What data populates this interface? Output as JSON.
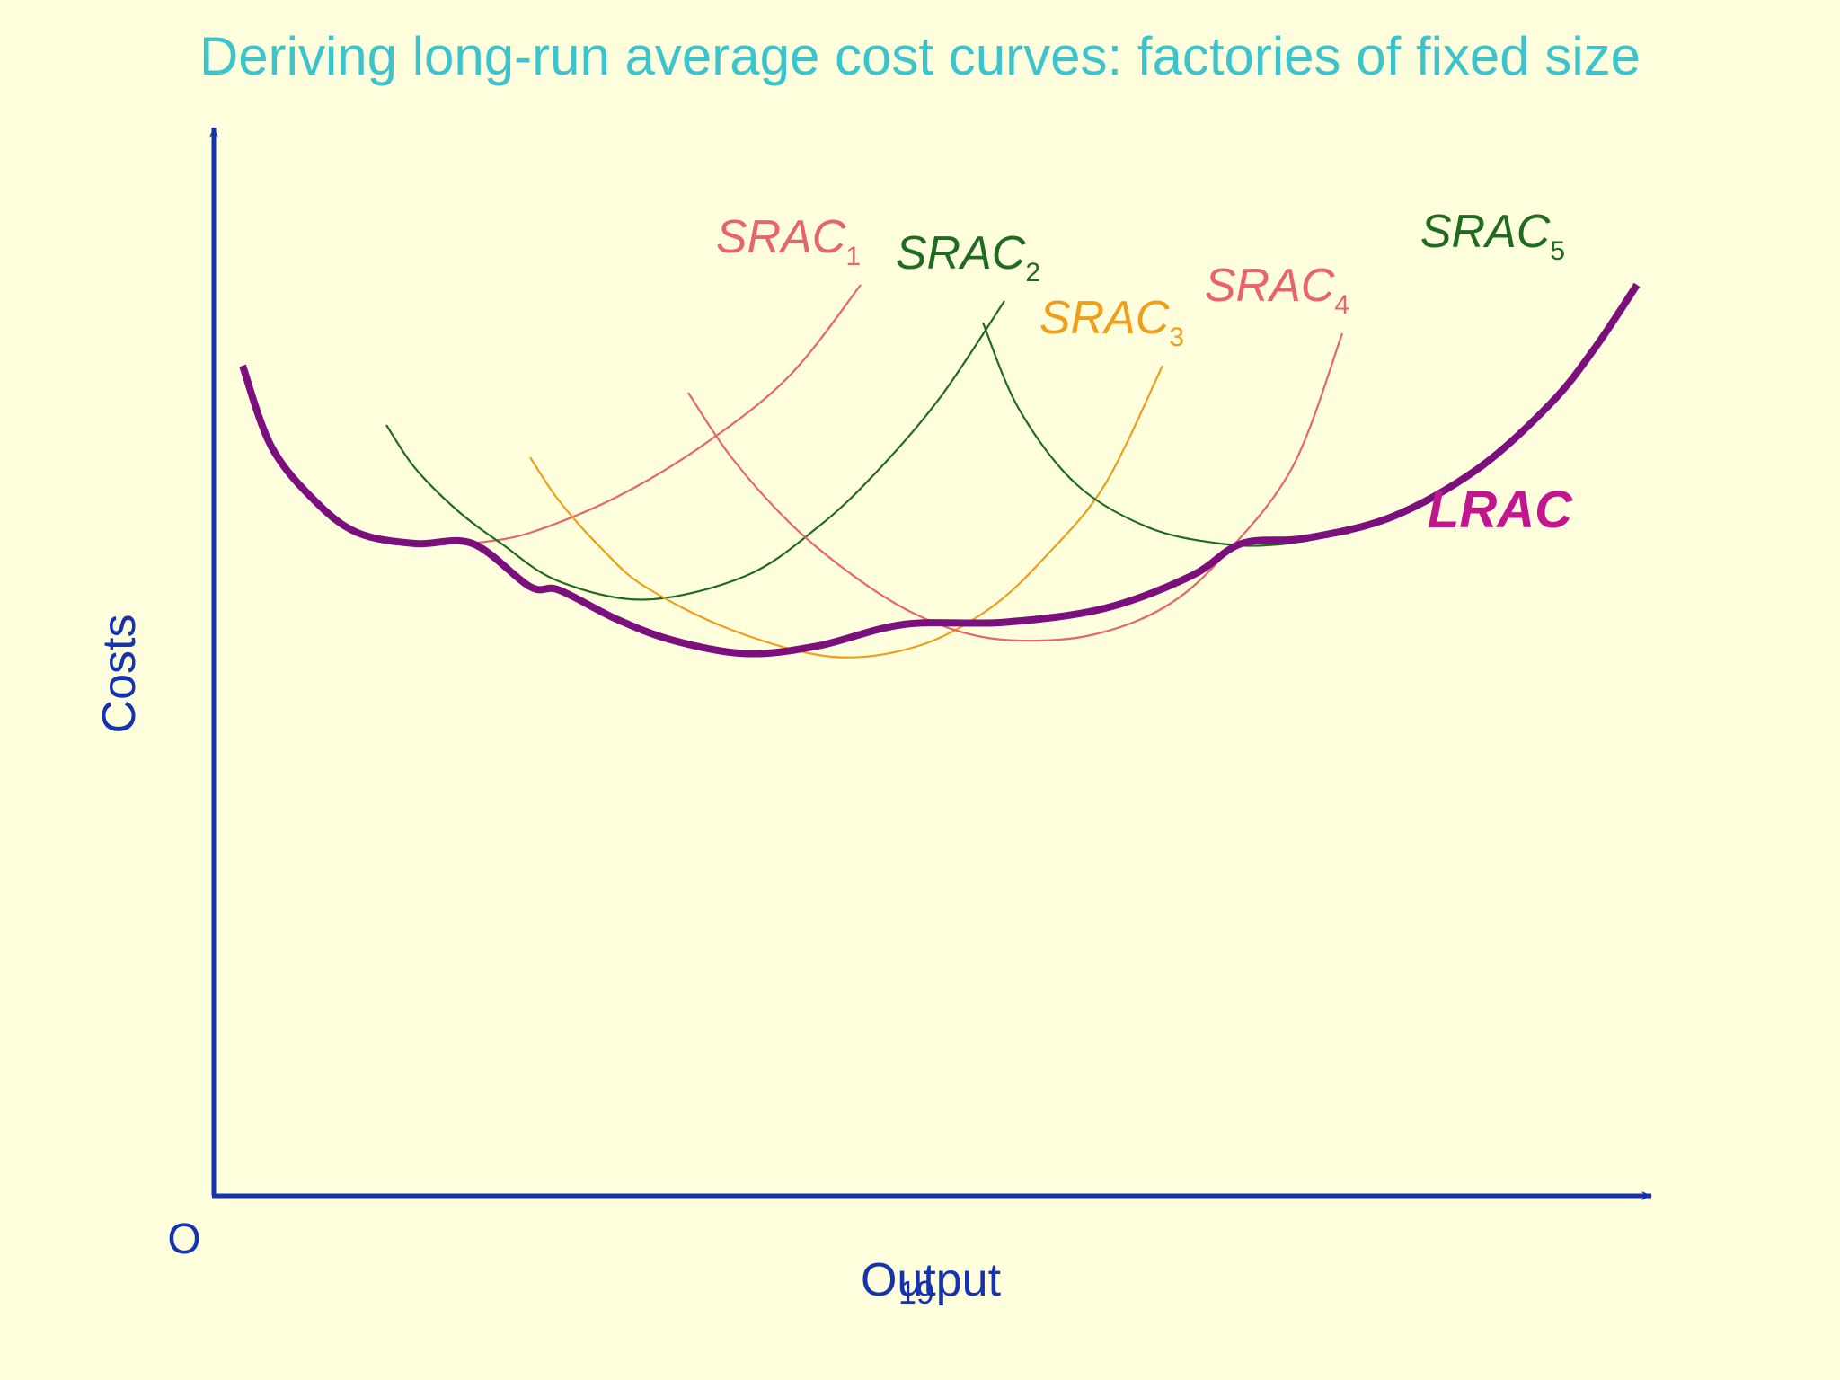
{
  "slide": {
    "title": "Deriving long-run average cost curves: factories of fixed size",
    "page_number": "19"
  },
  "colors": {
    "background": "#FFFFDD",
    "title": "#3CC4CC",
    "axis": "#1533B0",
    "lrac": "#7B0F7E",
    "lrac_label": "#C2168F",
    "salmon": "#E8636A",
    "green": "#1F6B1F",
    "orange": "#EE9E1A"
  },
  "chart_data": {
    "type": "line",
    "title": "Deriving long-run average cost curves: factories of fixed size",
    "xlabel": "Output",
    "ylabel": "Costs",
    "origin_label": "O",
    "xlim": [
      0,
      100
    ],
    "ylim": [
      0,
      100
    ],
    "grid": false,
    "axis_ticks": false,
    "series": [
      {
        "name": "SRAC",
        "subscript": "1",
        "color_key": "salmon",
        "x": [
          18,
          22,
          28,
          34,
          40,
          45
        ],
        "y": [
          60.5,
          61.5,
          64.8,
          69.6,
          76,
          84.5
        ]
      },
      {
        "name": "SRAC",
        "subscript": "2",
        "color_key": "green",
        "x": [
          12,
          14,
          17,
          20,
          24,
          30,
          37,
          42,
          46,
          50.5,
          55
        ],
        "y": [
          71.5,
          67.5,
          63.5,
          60.5,
          57,
          55.3,
          57.5,
          62,
          67,
          74,
          83
        ]
      },
      {
        "name": "SRAC",
        "subscript": "3",
        "color_key": "orange",
        "x": [
          22,
          24,
          27,
          30,
          36,
          43,
          49,
          54,
          58,
          62,
          66
        ],
        "y": [
          68.5,
          64.5,
          60,
          56.5,
          52.5,
          50,
          51,
          54.5,
          59.5,
          66,
          77
        ]
      },
      {
        "name": "SRAC",
        "subscript": "4",
        "color_key": "salmon",
        "x": [
          33,
          36,
          40,
          44,
          48,
          52,
          56,
          61,
          66,
          70,
          75,
          78.5
        ],
        "y": [
          74.5,
          68.5,
          62.5,
          58,
          54.5,
          52.3,
          51.5,
          52,
          54.5,
          59,
          67.5,
          80
        ]
      },
      {
        "name": "SRAC",
        "subscript": "5",
        "color_key": "green",
        "x": [
          53.5,
          56,
          60,
          65,
          70,
          74,
          79
        ],
        "y": [
          81,
          73,
          66,
          62,
          60.5,
          60.4,
          61.5
        ]
      },
      {
        "name": "LRAC",
        "subscript": "",
        "color_key": "lrac",
        "x": [
          2,
          4,
          7,
          10,
          14,
          18,
          22,
          24,
          28,
          32,
          37,
          42,
          48,
          55,
          62,
          68,
          71.5,
          76,
          82,
          88,
          93,
          96,
          99
        ],
        "y": [
          77,
          69.5,
          64.5,
          61.5,
          60.5,
          60.5,
          56.5,
          56.2,
          53.5,
          51.5,
          50.3,
          51,
          53,
          53.2,
          54.5,
          57.5,
          60.5,
          61,
          63,
          67.5,
          73.5,
          78.5,
          84.5
        ]
      }
    ],
    "annotations": [
      {
        "text": "SRAC",
        "sub": "1",
        "color_key": "salmon",
        "italic": true,
        "bold": false,
        "anchor_x": 45,
        "anchor_y": 87.5
      },
      {
        "text": "SRAC",
        "sub": "2",
        "color_key": "green",
        "italic": true,
        "bold": false,
        "anchor_x": 57.5,
        "anchor_y": 86
      },
      {
        "text": "SRAC",
        "sub": "3",
        "color_key": "orange",
        "italic": true,
        "bold": false,
        "anchor_x": 67.5,
        "anchor_y": 80
      },
      {
        "text": "SRAC",
        "sub": "4",
        "color_key": "salmon",
        "italic": true,
        "bold": false,
        "anchor_x": 79,
        "anchor_y": 83
      },
      {
        "text": "SRAC",
        "sub": "5",
        "color_key": "green",
        "italic": true,
        "bold": false,
        "anchor_x": 94,
        "anchor_y": 88
      },
      {
        "text": "LRAC",
        "sub": "",
        "color_key": "lrac_label",
        "italic": true,
        "bold": true,
        "anchor_x": 94.5,
        "anchor_y": 62
      }
    ]
  }
}
